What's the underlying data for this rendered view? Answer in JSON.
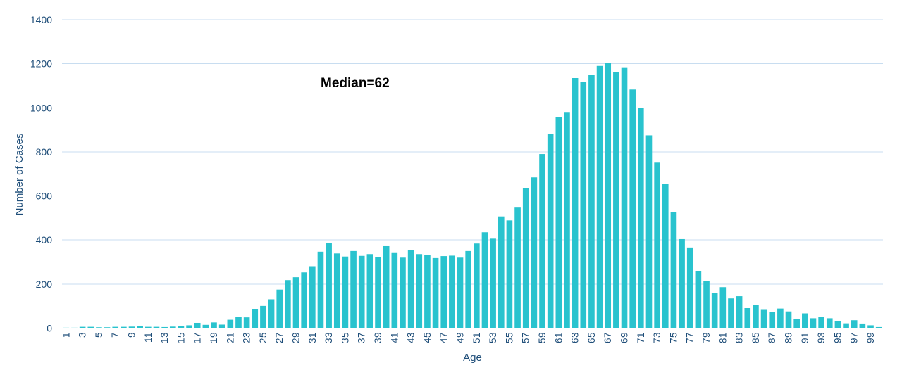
{
  "chart_data": {
    "type": "bar",
    "title": "",
    "xlabel": "Age",
    "ylabel": "Number of Cases",
    "annotation": {
      "text": "Median=62"
    },
    "x": [
      1,
      2,
      3,
      4,
      5,
      6,
      7,
      8,
      9,
      10,
      11,
      12,
      13,
      14,
      15,
      16,
      17,
      18,
      19,
      20,
      21,
      22,
      23,
      24,
      25,
      26,
      27,
      28,
      29,
      30,
      31,
      32,
      33,
      34,
      35,
      36,
      37,
      38,
      39,
      40,
      41,
      42,
      43,
      44,
      45,
      46,
      47,
      48,
      49,
      50,
      51,
      52,
      53,
      54,
      55,
      56,
      57,
      58,
      59,
      60,
      61,
      62,
      63,
      64,
      65,
      66,
      67,
      68,
      69,
      70,
      71,
      72,
      73,
      74,
      75,
      76,
      77,
      78,
      79,
      80,
      81,
      82,
      83,
      84,
      85,
      86,
      87,
      88,
      89,
      90,
      91,
      92,
      93,
      94,
      95,
      96,
      97,
      98,
      99,
      100
    ],
    "values": [
      2,
      2,
      6,
      6,
      4,
      4,
      6,
      6,
      7,
      9,
      6,
      6,
      5,
      7,
      10,
      13,
      24,
      15,
      26,
      16,
      38,
      50,
      49,
      85,
      101,
      131,
      175,
      218,
      231,
      253,
      281,
      347,
      386,
      339,
      325,
      350,
      328,
      336,
      322,
      372,
      344,
      320,
      353,
      336,
      331,
      318,
      327,
      329,
      320,
      350,
      384,
      435,
      406,
      507,
      489,
      547,
      636,
      684,
      790,
      881,
      957,
      981,
      1135,
      1119,
      1149,
      1190,
      1205,
      1163,
      1184,
      1083,
      1000,
      875,
      751,
      654,
      527,
      404,
      366,
      260,
      214,
      160,
      186,
      135,
      145,
      91,
      105,
      83,
      73,
      89,
      76,
      41,
      67,
      45,
      52,
      45,
      32,
      22,
      36,
      21,
      13,
      5
    ],
    "ylim": [
      0,
      1400
    ],
    "y_ticks": [
      0,
      200,
      400,
      600,
      800,
      1000,
      1200,
      1400
    ],
    "x_tick_labels": [
      1,
      3,
      5,
      7,
      9,
      11,
      13,
      15,
      17,
      19,
      21,
      23,
      25,
      27,
      29,
      31,
      33,
      35,
      37,
      39,
      41,
      43,
      45,
      47,
      49,
      51,
      53,
      55,
      57,
      59,
      61,
      63,
      65,
      67,
      69,
      71,
      73,
      75,
      77,
      79,
      81,
      83,
      85,
      87,
      89,
      91,
      93,
      95,
      97,
      99
    ],
    "grid": "horizontal",
    "legend": "none",
    "bar_color": "#29C3CE",
    "gridline_color": "#C8DDF0",
    "axis_text_color": "#1F4E79",
    "annotation_color": "#000000",
    "background_color": "#FFFFFF"
  }
}
